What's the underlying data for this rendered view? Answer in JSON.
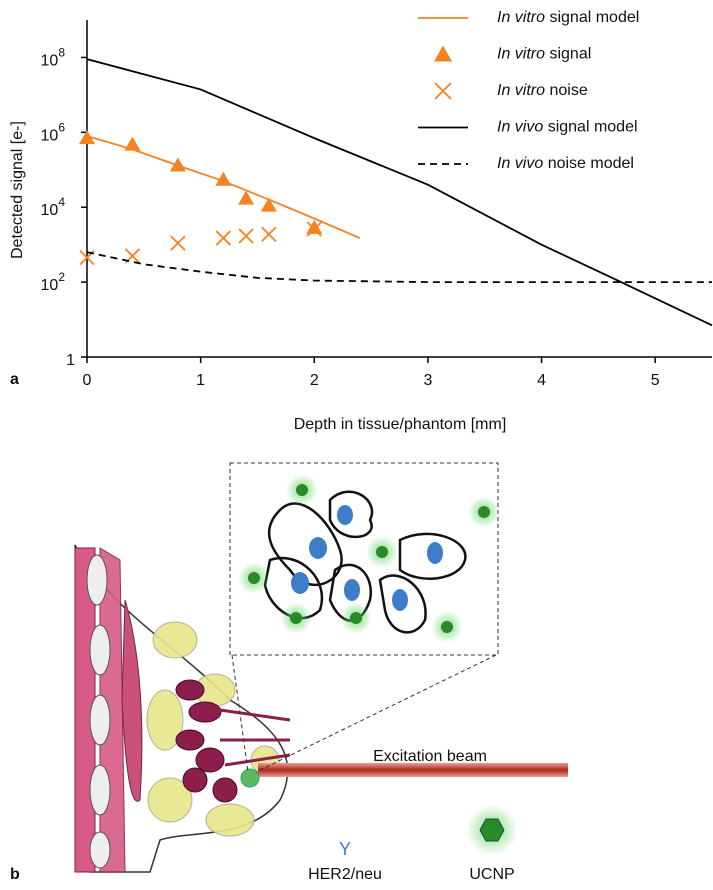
{
  "chart_data": {
    "type": "line",
    "panel_label": "a",
    "xlabel": "Depth in tissue/phantom [mm]",
    "ylabel": "Detected signal [e-]",
    "xlim": [
      0,
      5.5
    ],
    "xticks": [
      0,
      1,
      2,
      3,
      4,
      5
    ],
    "ylim": [
      1,
      1000000000
    ],
    "log_y": true,
    "yticks": [
      {
        "value": 1,
        "label": "1"
      },
      {
        "value": 100,
        "label": "10",
        "exp": "2"
      },
      {
        "value": 10000,
        "label": "10",
        "exp": "4"
      },
      {
        "value": 1000000,
        "label": "10",
        "exp": "6"
      },
      {
        "value": 100000000,
        "label": "10",
        "exp": "8"
      }
    ],
    "legend": "top-right",
    "series": [
      {
        "name": "In vitro signal model",
        "color": "#f58220",
        "style": "solid",
        "x": [
          0,
          0.4,
          0.8,
          1.2,
          1.6,
          2.0,
          2.4
        ],
        "values": [
          800000,
          350000,
          130000,
          50000,
          16000,
          5000,
          1500
        ]
      },
      {
        "name": "In vitro signal",
        "color": "#f58220",
        "marker": "triangle",
        "x": [
          0,
          0.4,
          0.8,
          1.2,
          1.4,
          1.6,
          2.0
        ],
        "values": [
          700000,
          470000,
          130000,
          54000,
          17000,
          11000,
          2800
        ]
      },
      {
        "name": "In vitro noise",
        "color": "#f58220",
        "marker": "x",
        "x": [
          0,
          0.4,
          0.8,
          1.2,
          1.4,
          1.6,
          2.0
        ],
        "values": [
          450,
          500,
          1100,
          1500,
          1700,
          1900,
          2600
        ]
      },
      {
        "name": "In vivo signal model",
        "color": "#000000",
        "style": "solid",
        "x": [
          0,
          1,
          2,
          3,
          4,
          4.7,
          5.5
        ],
        "values": [
          90000000,
          14000000,
          700000,
          40000,
          1000,
          100,
          7
        ]
      },
      {
        "name": "In vivo noise model",
        "color": "#000000",
        "style": "dashed",
        "x": [
          0,
          0.5,
          1,
          1.5,
          2,
          3,
          5.5
        ],
        "values": [
          630,
          300,
          190,
          130,
          110,
          100,
          100
        ]
      }
    ]
  },
  "diagram": {
    "panel_label": "b",
    "beam_label": "Excitation beam",
    "receptor_label": "HER2/neu",
    "particle_label": "UCNP"
  }
}
